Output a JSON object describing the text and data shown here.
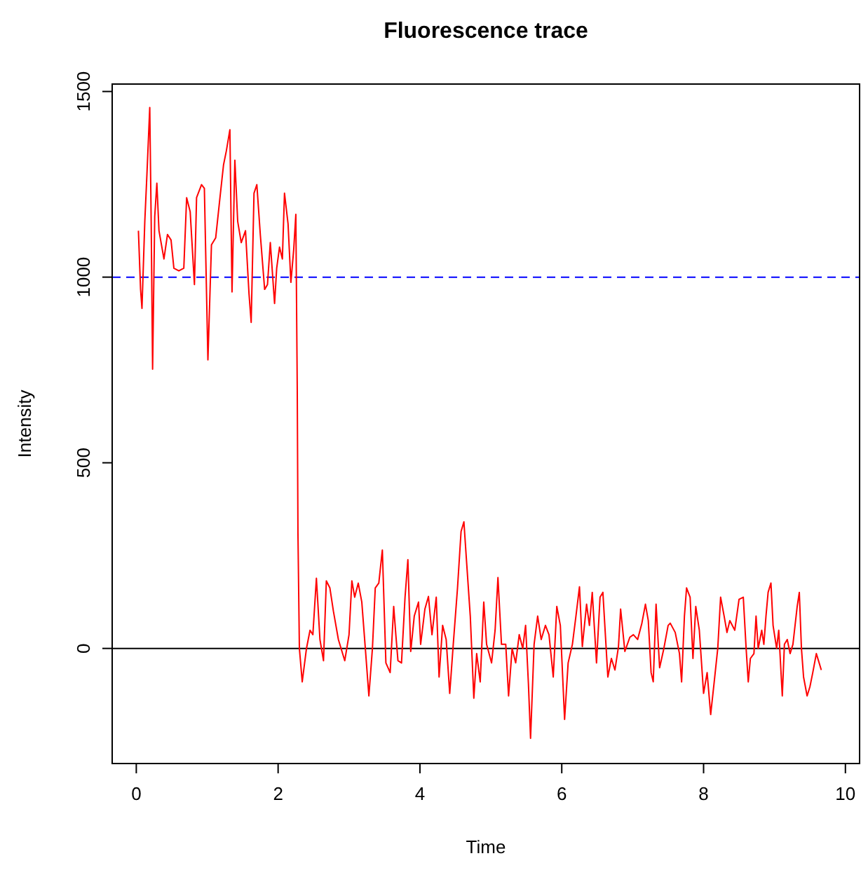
{
  "chart_data": {
    "type": "line",
    "title": "Fluorescence trace",
    "xlabel": "Time",
    "ylabel": "Intensity",
    "xlim": [
      -0.34,
      10.2
    ],
    "ylim": [
      -310,
      1520
    ],
    "xticks": [
      0,
      2,
      4,
      6,
      8,
      10
    ],
    "yticks": [
      0,
      500,
      1000,
      1500
    ],
    "grid": false,
    "ref_lines": [
      {
        "axis": "y",
        "value": 1000,
        "color": "#0000ff",
        "line_style": "dashed"
      },
      {
        "axis": "y",
        "value": 0,
        "color": "#000000",
        "line_style": "solid"
      }
    ],
    "series": [
      {
        "color": "#ff0000",
        "x": [
          0.03,
          0.06,
          0.08,
          0.12,
          0.15,
          0.19,
          0.21,
          0.23,
          0.26,
          0.29,
          0.32,
          0.39,
          0.44,
          0.49,
          0.53,
          0.6,
          0.67,
          0.71,
          0.76,
          0.82,
          0.85,
          0.92,
          0.96,
          1.01,
          1.06,
          1.12,
          1.18,
          1.23,
          1.27,
          1.32,
          1.35,
          1.39,
          1.43,
          1.48,
          1.54,
          1.59,
          1.62,
          1.66,
          1.7,
          1.75,
          1.81,
          1.85,
          1.89,
          1.95,
          1.98,
          2.02,
          2.06,
          2.09,
          2.14,
          2.18,
          2.22,
          2.25,
          2.27,
          2.28,
          2.3,
          2.34,
          2.4,
          2.45,
          2.49,
          2.54,
          2.59,
          2.64,
          2.68,
          2.73,
          2.78,
          2.85,
          2.94,
          3.0,
          3.04,
          3.08,
          3.13,
          3.18,
          3.23,
          3.28,
          3.33,
          3.37,
          3.42,
          3.47,
          3.52,
          3.58,
          3.63,
          3.66,
          3.69,
          3.74,
          3.79,
          3.83,
          3.87,
          3.92,
          3.98,
          4.01,
          4.07,
          4.12,
          4.17,
          4.23,
          4.27,
          4.32,
          4.37,
          4.42,
          4.47,
          4.53,
          4.58,
          4.62,
          4.66,
          4.71,
          4.76,
          4.8,
          4.85,
          4.9,
          4.94,
          5.01,
          5.06,
          5.1,
          5.15,
          5.21,
          5.25,
          5.3,
          5.35,
          5.4,
          5.45,
          5.49,
          5.53,
          5.56,
          5.61,
          5.66,
          5.71,
          5.77,
          5.82,
          5.88,
          5.93,
          5.98,
          6.04,
          6.09,
          6.15,
          6.2,
          6.25,
          6.29,
          6.35,
          6.39,
          6.43,
          6.49,
          6.54,
          6.58,
          6.65,
          6.7,
          6.75,
          6.8,
          6.83,
          6.89,
          6.96,
          7.01,
          7.07,
          7.13,
          7.18,
          7.22,
          7.26,
          7.29,
          7.33,
          7.38,
          7.44,
          7.5,
          7.53,
          7.6,
          7.66,
          7.69,
          7.73,
          7.76,
          7.81,
          7.85,
          7.89,
          7.94,
          8.0,
          8.05,
          8.1,
          8.15,
          8.2,
          8.24,
          8.29,
          8.33,
          8.37,
          8.44,
          8.5,
          8.56,
          8.6,
          8.63,
          8.66,
          8.71,
          8.74,
          8.77,
          8.82,
          8.85,
          8.88,
          8.91,
          8.95,
          8.98,
          9.03,
          9.06,
          9.11,
          9.14,
          9.18,
          9.22,
          9.26,
          9.32,
          9.35,
          9.38,
          9.41,
          9.46,
          9.5,
          9.54,
          9.59,
          9.63,
          9.66
        ],
        "values": [
          1125,
          968,
          916,
          1150,
          1277,
          1457,
          1150,
          752,
          1163,
          1253,
          1125,
          1049,
          1115,
          1100,
          1024,
          1017,
          1024,
          1214,
          1176,
          980,
          1214,
          1249,
          1239,
          777,
          1087,
          1106,
          1214,
          1302,
          1340,
          1397,
          960,
          1315,
          1150,
          1093,
          1125,
          954,
          878,
          1226,
          1249,
          1112,
          967,
          980,
          1093,
          929,
          1024,
          1081,
          1049,
          1226,
          1144,
          986,
          1074,
          1169,
          695,
          309,
          0,
          -90,
          0,
          49,
          37,
          189,
          24,
          -33,
          182,
          163,
          100,
          24,
          -33,
          37,
          182,
          138,
          176,
          125,
          0,
          -128,
          0,
          163,
          176,
          265,
          -39,
          -65,
          113,
          37,
          -33,
          -39,
          138,
          239,
          -8,
          87,
          125,
          11,
          106,
          140,
          37,
          138,
          -77,
          62,
          24,
          -121,
          11,
          163,
          315,
          341,
          227,
          87,
          -134,
          -14,
          -90,
          125,
          11,
          -39,
          49,
          191,
          11,
          11,
          -128,
          0,
          -39,
          37,
          0,
          62,
          -96,
          -242,
          11,
          87,
          24,
          62,
          37,
          -77,
          113,
          62,
          -191,
          -39,
          11,
          87,
          166,
          5,
          119,
          62,
          151,
          -39,
          138,
          151,
          -77,
          -27,
          -58,
          5,
          106,
          -8,
          30,
          37,
          24,
          68,
          119,
          75,
          -65,
          -90,
          119,
          -52,
          0,
          62,
          68,
          43,
          -14,
          -90,
          87,
          163,
          138,
          -27,
          113,
          49,
          -121,
          -65,
          -178,
          -90,
          0,
          138,
          87,
          43,
          75,
          49,
          132,
          138,
          0,
          -90,
          -27,
          -14,
          87,
          0,
          49,
          11,
          87,
          151,
          176,
          62,
          0,
          49,
          -128,
          11,
          24,
          -14,
          11,
          113,
          151,
          0,
          -77,
          -128,
          -103,
          -65,
          -14,
          -39,
          -58
        ]
      }
    ]
  }
}
